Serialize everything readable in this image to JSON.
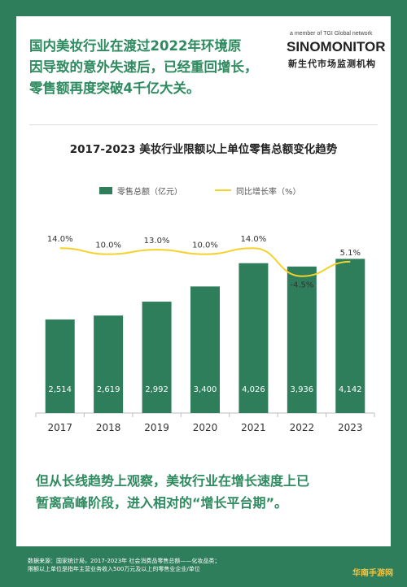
{
  "header": {
    "headline": "国内美妆行业在渡过2022年环境原\n因导致的意外失速后，已经重回增长，\n零售额再度突破4千亿大关。"
  },
  "logo": {
    "top": "a member of TGI Global network",
    "main": "SINOMONITOR",
    "sub": "新生代市场监测机构"
  },
  "chart_data": {
    "type": "bar",
    "title": "2017-2023 美妆行业限额以上单位零售总额变化趋势",
    "categories": [
      "2017",
      "2018",
      "2019",
      "2020",
      "2021",
      "2022",
      "2023"
    ],
    "series": [
      {
        "name": "零售总额（亿元）",
        "type": "bar",
        "color": "#2e7d5b",
        "values": [
          2514,
          2619,
          2992,
          3400,
          4026,
          3936,
          4142
        ],
        "labels": [
          "2,514",
          "2,619",
          "2,992",
          "3,400",
          "4,026",
          "3,936",
          "4,142"
        ]
      },
      {
        "name": "同比增长率（%）",
        "type": "line",
        "color": "#f5d229",
        "values": [
          14.0,
          10.0,
          13.0,
          10.0,
          14.0,
          -4.5,
          5.1
        ],
        "labels": [
          "14.0%",
          "10.0%",
          "13.0%",
          "10.0%",
          "14.0%",
          "-4.5%",
          "5.1%"
        ]
      }
    ],
    "ylim": [
      0,
      4500
    ],
    "y2lim": [
      -10,
      20
    ],
    "legend": "top",
    "grid": false
  },
  "conclusion": "但从长线趋势上观察，美妆行业在增长速度上已\n暂离高峰阶段，进入相对的“增长平台期”。",
  "source": "数据来源：国家统计局，2017-2023年 社会消费品零售总额——化妆品类；\n限额以上单位是指年主营业务收入500万元及以上的零售业企业/单位",
  "watermark": "华南手游网"
}
